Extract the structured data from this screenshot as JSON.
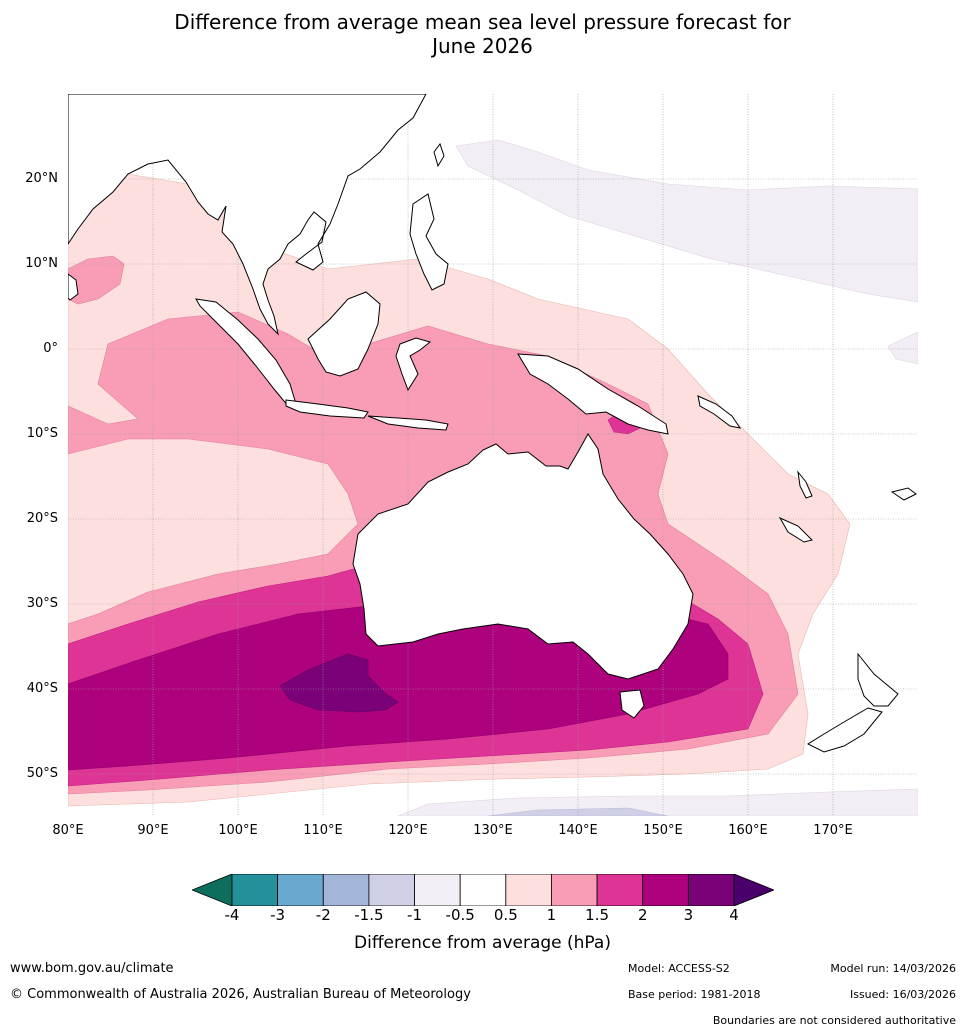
{
  "title_line1": "Difference from average mean sea level pressure forecast for",
  "title_line2": "June 2026",
  "map": {
    "lat_labels": [
      {
        "id": "lat-20n",
        "text": "20°N",
        "value": 20
      },
      {
        "id": "lat-10n",
        "text": "10°N",
        "value": 10
      },
      {
        "id": "lat-0",
        "text": "0°",
        "value": 0
      },
      {
        "id": "lat-10s",
        "text": "10°S",
        "value": -10
      },
      {
        "id": "lat-20s",
        "text": "20°S",
        "value": -20
      },
      {
        "id": "lat-30s",
        "text": "30°S",
        "value": -30
      },
      {
        "id": "lat-40s",
        "text": "40°S",
        "value": -40
      },
      {
        "id": "lat-50s",
        "text": "50°S",
        "value": -50
      }
    ],
    "lon_labels": [
      {
        "id": "lon-80e",
        "text": "80°E",
        "value": 80
      },
      {
        "id": "lon-90e",
        "text": "90°E",
        "value": 90
      },
      {
        "id": "lon-100e",
        "text": "100°E",
        "value": 100
      },
      {
        "id": "lon-110e",
        "text": "110°E",
        "value": 110
      },
      {
        "id": "lon-120e",
        "text": "120°E",
        "value": 120
      },
      {
        "id": "lon-130e",
        "text": "130°E",
        "value": 130
      },
      {
        "id": "lon-140e",
        "text": "140°E",
        "value": 140
      },
      {
        "id": "lon-150e",
        "text": "150°E",
        "value": 150
      },
      {
        "id": "lon-160e",
        "text": "160°E",
        "value": 160
      },
      {
        "id": "lon-170e",
        "text": "170°E",
        "value": 170
      }
    ],
    "extent": {
      "lon_min": 80,
      "lon_max": 180,
      "lat_min": -55,
      "lat_max": 30
    }
  },
  "colorbar": {
    "colors": [
      "#0e6e5e",
      "#23909a",
      "#69a9d0",
      "#a4b6d8",
      "#cfd0e6",
      "#f3eef5",
      "#ffffff",
      "#fde0dd",
      "#f99db6",
      "#dd3496",
      "#ae017e",
      "#7a0177",
      "#4a006a"
    ],
    "ticks": [
      "-4",
      "-3",
      "-2",
      "-1.5",
      "-1",
      "-0.5",
      "0.5",
      "1",
      "1.5",
      "2",
      "3",
      "4"
    ],
    "label": "Difference from average (hPa)"
  },
  "footer": {
    "website": "www.bom.gov.au/climate",
    "copyright": "© Commonwealth of Australia 2026, Australian Bureau of Meteorology",
    "model": "Model: ACCESS-S2",
    "base_period": "Base period: 1981-2018",
    "model_run": "Model run: 14/03/2026",
    "issued": "Issued: 16/03/2026",
    "disclaimer": "Boundaries are not considered authoritative"
  }
}
